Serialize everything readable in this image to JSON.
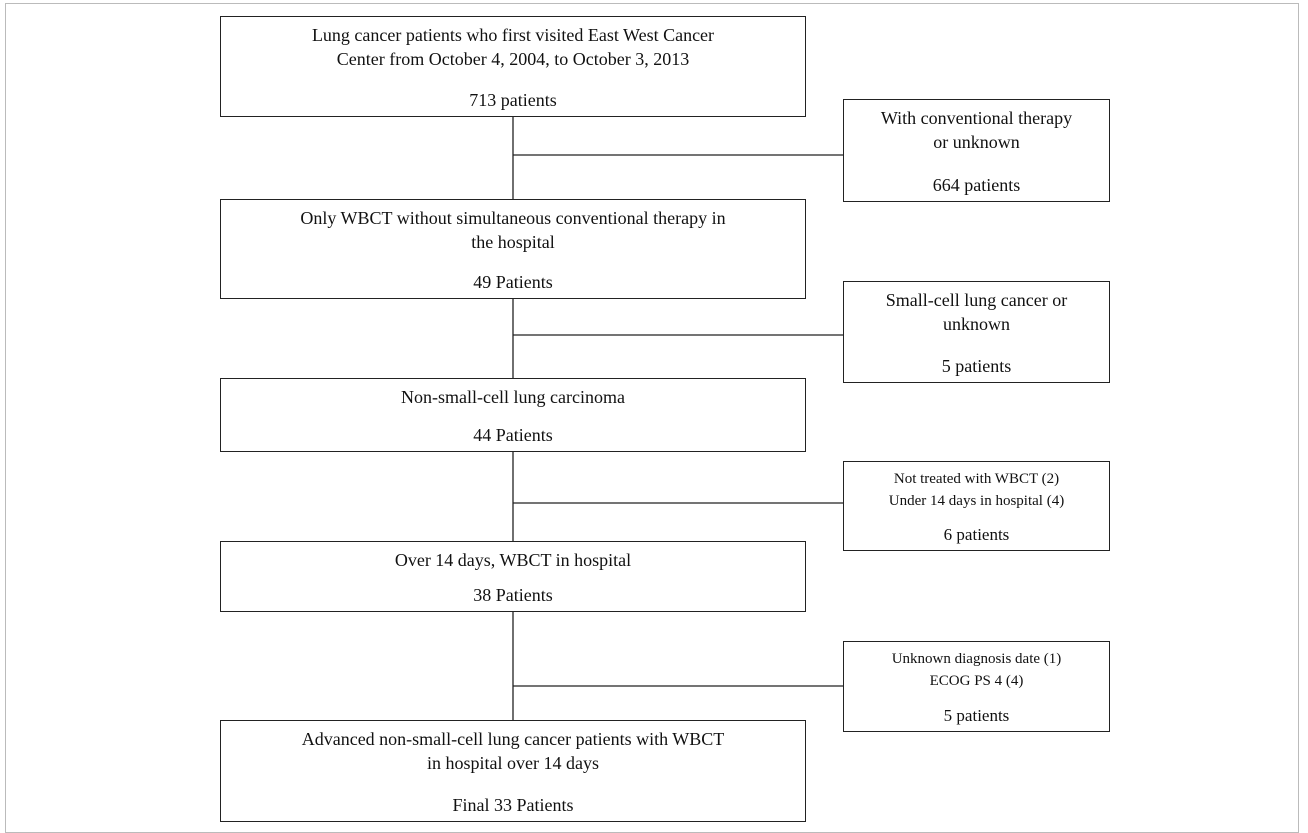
{
  "nodes": [
    {
      "lines": [
        "Lung cancer patients who first visited East West Cancer",
        "Center from October 4, 2004, to October 3, 2013"
      ],
      "count": "713 patients"
    },
    {
      "lines": [
        "Only WBCT without simultaneous conventional therapy in",
        "the hospital"
      ],
      "count": "49 Patients"
    },
    {
      "lines": [
        "Non-small-cell lung carcinoma"
      ],
      "count": "44 Patients"
    },
    {
      "lines": [
        "Over 14 days, WBCT in hospital"
      ],
      "count": "38 Patients"
    },
    {
      "lines": [
        "Advanced non-small-cell lung cancer patients with WBCT",
        "in hospital over 14 days"
      ],
      "count": "Final 33 Patients"
    }
  ],
  "exclusions": [
    {
      "lines": [
        "With conventional therapy",
        "or unknown"
      ],
      "count": "664 patients"
    },
    {
      "lines": [
        "Small-cell lung cancer or",
        "unknown"
      ],
      "count": "5 patients"
    },
    {
      "lines": [
        "Not treated with WBCT (2)",
        "Under 14 days in hospital  (4)"
      ],
      "count": "6 patients"
    },
    {
      "lines": [
        "Unknown diagnosis date (1)",
        "ECOG PS 4 (4)"
      ],
      "count": "5 patients"
    }
  ]
}
